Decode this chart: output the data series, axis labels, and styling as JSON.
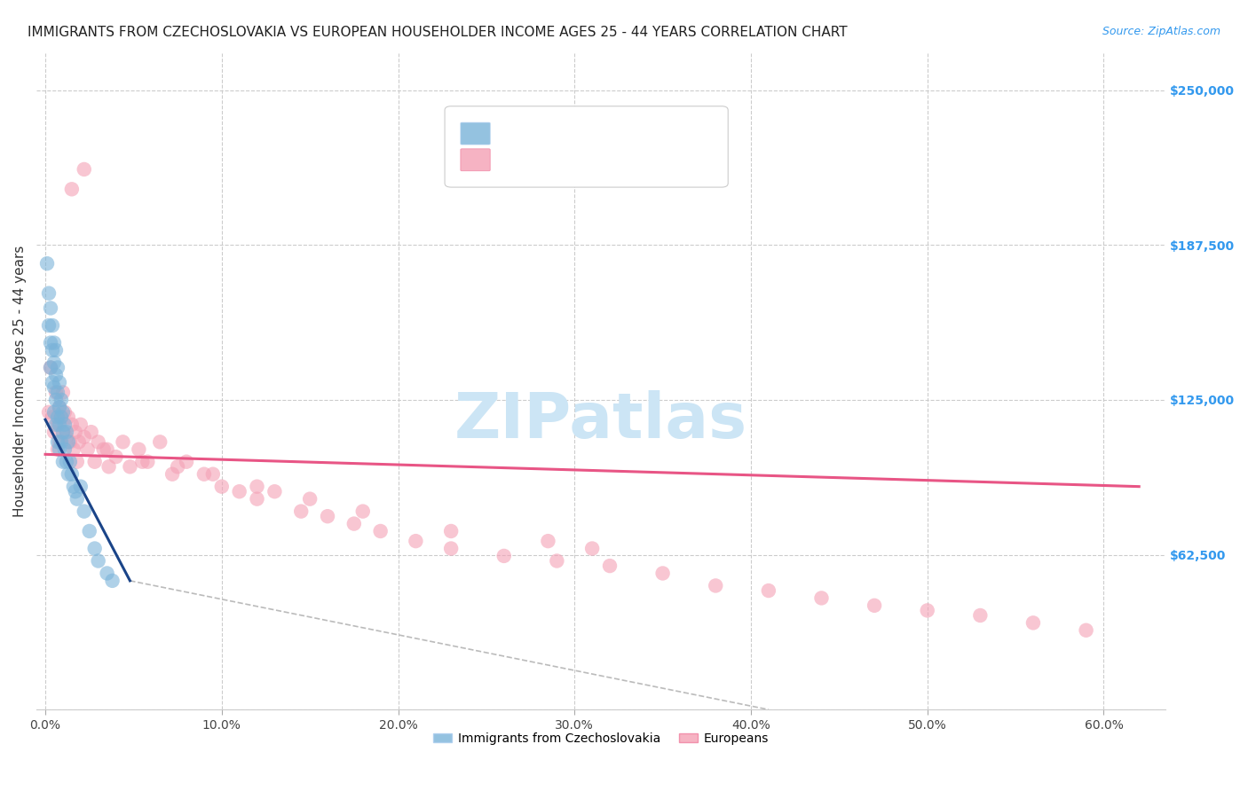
{
  "title": "IMMIGRANTS FROM CZECHOSLOVAKIA VS EUROPEAN HOUSEHOLDER INCOME AGES 25 - 44 YEARS CORRELATION CHART",
  "source": "Source: ZipAtlas.com",
  "ylabel": "Householder Income Ages 25 - 44 years",
  "xlabel_ticks": [
    "0.0%",
    "10.0%",
    "20.0%",
    "30.0%",
    "40.0%",
    "50.0%",
    "60.0%"
  ],
  "xlabel_vals": [
    0.0,
    0.1,
    0.2,
    0.3,
    0.4,
    0.5,
    0.6
  ],
  "ylabel_ticks_right": [
    "$250,000",
    "$187,500",
    "$125,000",
    "$62,500"
  ],
  "ylabel_vals_right": [
    250000,
    187500,
    125000,
    62500
  ],
  "ylim": [
    0,
    265000
  ],
  "xlim": [
    -0.005,
    0.635
  ],
  "background_color": "#ffffff",
  "grid_color": "#cccccc",
  "watermark_text": "ZIPatlas",
  "watermark_color": "#cce5f5",
  "blue_color": "#7ab3d9",
  "pink_color": "#f4a0b5",
  "blue_line_color": "#1a4488",
  "pink_line_color": "#e85585",
  "dash_line_color": "#bbbbbb",
  "blue_scatter_x": [
    0.001,
    0.002,
    0.002,
    0.003,
    0.003,
    0.003,
    0.004,
    0.004,
    0.004,
    0.005,
    0.005,
    0.005,
    0.005,
    0.006,
    0.006,
    0.006,
    0.006,
    0.007,
    0.007,
    0.007,
    0.007,
    0.008,
    0.008,
    0.008,
    0.008,
    0.009,
    0.009,
    0.009,
    0.01,
    0.01,
    0.01,
    0.011,
    0.011,
    0.012,
    0.012,
    0.013,
    0.013,
    0.014,
    0.015,
    0.016,
    0.017,
    0.018,
    0.02,
    0.022,
    0.025,
    0.028,
    0.03,
    0.035,
    0.038
  ],
  "blue_scatter_y": [
    180000,
    168000,
    155000,
    162000,
    148000,
    138000,
    155000,
    145000,
    132000,
    148000,
    140000,
    130000,
    120000,
    145000,
    135000,
    125000,
    115000,
    138000,
    128000,
    118000,
    108000,
    132000,
    122000,
    115000,
    105000,
    125000,
    118000,
    108000,
    120000,
    112000,
    100000,
    115000,
    105000,
    112000,
    100000,
    108000,
    95000,
    100000,
    95000,
    90000,
    88000,
    85000,
    90000,
    80000,
    72000,
    65000,
    60000,
    55000,
    52000
  ],
  "pink_scatter_x": [
    0.002,
    0.003,
    0.004,
    0.005,
    0.006,
    0.007,
    0.007,
    0.008,
    0.008,
    0.009,
    0.01,
    0.01,
    0.011,
    0.012,
    0.013,
    0.014,
    0.015,
    0.016,
    0.017,
    0.018,
    0.019,
    0.02,
    0.022,
    0.024,
    0.026,
    0.028,
    0.03,
    0.033,
    0.036,
    0.04,
    0.044,
    0.048,
    0.053,
    0.058,
    0.065,
    0.072,
    0.08,
    0.09,
    0.1,
    0.11,
    0.12,
    0.13,
    0.145,
    0.16,
    0.175,
    0.19,
    0.21,
    0.23,
    0.26,
    0.29,
    0.32,
    0.35,
    0.38,
    0.41,
    0.44,
    0.47,
    0.5,
    0.53,
    0.56,
    0.59,
    0.285,
    0.31,
    0.18,
    0.23,
    0.15,
    0.12,
    0.095,
    0.075,
    0.055,
    0.035,
    0.022,
    0.015
  ],
  "pink_scatter_y": [
    120000,
    138000,
    118000,
    112000,
    128000,
    115000,
    105000,
    122000,
    108000,
    118000,
    128000,
    112000,
    120000,
    110000,
    118000,
    108000,
    115000,
    105000,
    112000,
    100000,
    108000,
    115000,
    110000,
    105000,
    112000,
    100000,
    108000,
    105000,
    98000,
    102000,
    108000,
    98000,
    105000,
    100000,
    108000,
    95000,
    100000,
    95000,
    90000,
    88000,
    85000,
    88000,
    80000,
    78000,
    75000,
    72000,
    68000,
    65000,
    62000,
    60000,
    58000,
    55000,
    50000,
    48000,
    45000,
    42000,
    40000,
    38000,
    35000,
    32000,
    68000,
    65000,
    80000,
    72000,
    85000,
    90000,
    95000,
    98000,
    100000,
    105000,
    218000,
    210000
  ],
  "blue_trend_x": [
    0.0,
    0.048
  ],
  "blue_trend_y": [
    117000,
    52000
  ],
  "pink_trend_x": [
    0.0,
    0.62
  ],
  "pink_trend_y": [
    103000,
    90000
  ],
  "dash_trend_x": [
    0.048,
    0.41
  ],
  "dash_trend_y": [
    52000,
    0
  ],
  "legend_blue_label": "Immigrants from Czechoslovakia",
  "legend_pink_label": "Europeans",
  "title_fontsize": 11,
  "source_fontsize": 9,
  "tick_fontsize": 10,
  "ylabel_fontsize": 11,
  "legend_fontsize": 10,
  "watermark_fontsize": 52
}
